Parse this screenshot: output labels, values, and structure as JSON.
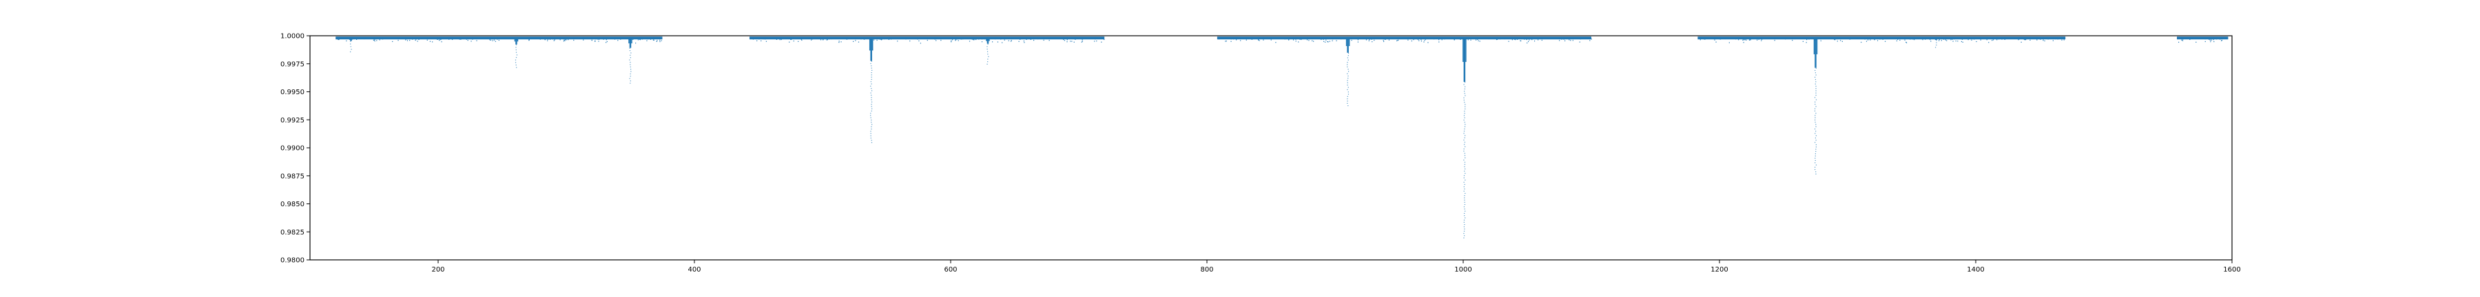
{
  "chart_data": {
    "type": "scatter",
    "title": "",
    "xlabel": "",
    "ylabel": "",
    "xlim": [
      100,
      1600
    ],
    "ylim": [
      0.98,
      1.0
    ],
    "grid": false,
    "legend": "none",
    "x_ticks": [
      200,
      400,
      600,
      800,
      1000,
      1200,
      1400,
      1600
    ],
    "x_tick_labels": [
      "200",
      "400",
      "600",
      "800",
      "1000",
      "1200",
      "1400",
      "1600"
    ],
    "y_ticks": [
      0.98,
      0.9825,
      0.985,
      0.9875,
      0.99,
      0.9925,
      0.995,
      0.9975,
      1.0
    ],
    "y_tick_labels": [
      "0.9800",
      "0.9825",
      "0.9850",
      "0.9875",
      "0.9900",
      "0.9925",
      "0.9950",
      "0.9975",
      "1.0000"
    ],
    "series": [
      {
        "color": "#1f77b4",
        "baseline_flux": 0.9998,
        "segments": [
          [
            120,
            375
          ],
          [
            443,
            720
          ],
          [
            808,
            1100
          ],
          [
            1183,
            1470
          ],
          [
            1557,
            1597
          ]
        ],
        "transits": [
          {
            "t": 132,
            "min_flux": 0.9986
          },
          {
            "t": 261,
            "min_flux": 0.9972
          },
          {
            "t": 350,
            "min_flux": 0.9958
          },
          {
            "t": 538,
            "min_flux": 0.9905
          },
          {
            "t": 629,
            "min_flux": 0.9975
          },
          {
            "t": 910,
            "min_flux": 0.9938
          },
          {
            "t": 1001,
            "min_flux": 0.982
          },
          {
            "t": 1275,
            "min_flux": 0.9877
          },
          {
            "t": 1369,
            "min_flux": 0.999
          },
          {
            "t": 1583,
            "min_flux": 0.9995
          }
        ]
      }
    ]
  }
}
